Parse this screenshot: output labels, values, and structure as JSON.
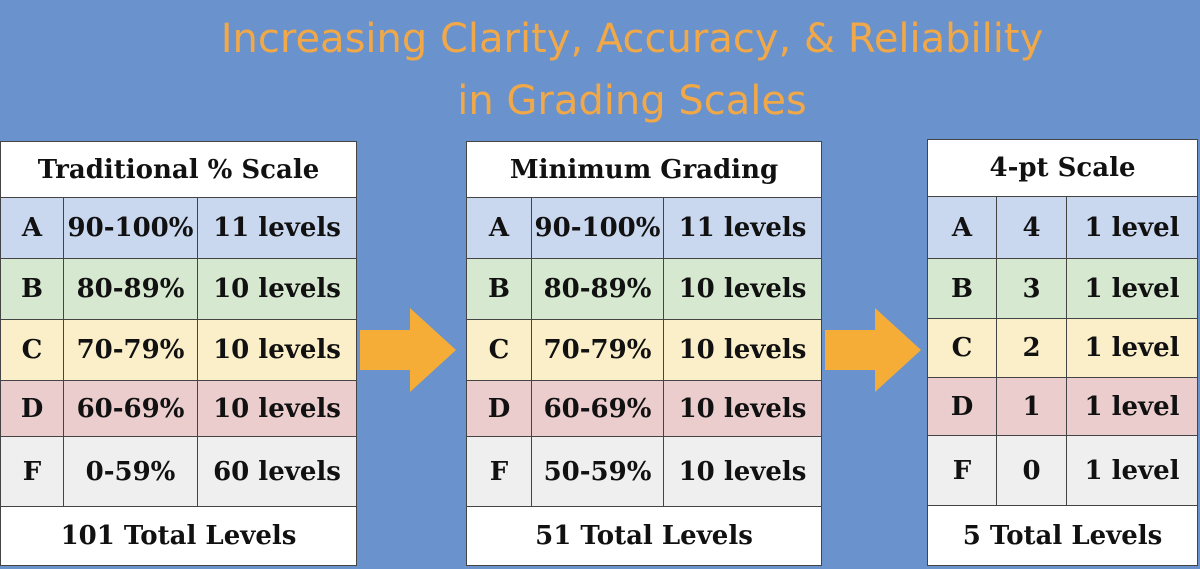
{
  "title": {
    "line1": "Increasing Clarity, Accuracy, & Reliability",
    "line2": "in Grading Scales"
  },
  "colors": {
    "background": "#6a92cc",
    "title": "#f0a848",
    "arrow": "#f5ad38",
    "grade_a": "#c9d7ef",
    "grade_b": "#d6e8cf",
    "grade_c": "#fbefc9",
    "grade_d": "#ebcdcd",
    "grade_f": "#efefef"
  },
  "tables": [
    {
      "header": "Traditional % Scale",
      "rows": [
        {
          "grade": "A",
          "range": "90-100%",
          "levels": "11 levels"
        },
        {
          "grade": "B",
          "range": "80-89%",
          "levels": "10 levels"
        },
        {
          "grade": "C",
          "range": "70-79%",
          "levels": "10 levels"
        },
        {
          "grade": "D",
          "range": "60-69%",
          "levels": "10 levels"
        },
        {
          "grade": "F",
          "range": "0-59%",
          "levels": "60 levels"
        }
      ],
      "total": "101 Total Levels"
    },
    {
      "header": "Minimum Grading",
      "rows": [
        {
          "grade": "A",
          "range": "90-100%",
          "levels": "11 levels"
        },
        {
          "grade": "B",
          "range": "80-89%",
          "levels": "10 levels"
        },
        {
          "grade": "C",
          "range": "70-79%",
          "levels": "10 levels"
        },
        {
          "grade": "D",
          "range": "60-69%",
          "levels": "10 levels"
        },
        {
          "grade": "F",
          "range": "50-59%",
          "levels": "10 levels"
        }
      ],
      "total": "51 Total Levels"
    },
    {
      "header": "4-pt Scale",
      "rows": [
        {
          "grade": "A",
          "range": "4",
          "levels": "1 level"
        },
        {
          "grade": "B",
          "range": "3",
          "levels": "1 level"
        },
        {
          "grade": "C",
          "range": "2",
          "levels": "1 level"
        },
        {
          "grade": "D",
          "range": "1",
          "levels": "1 level"
        },
        {
          "grade": "F",
          "range": "0",
          "levels": "1 level"
        }
      ],
      "total": "5 Total Levels"
    }
  ]
}
